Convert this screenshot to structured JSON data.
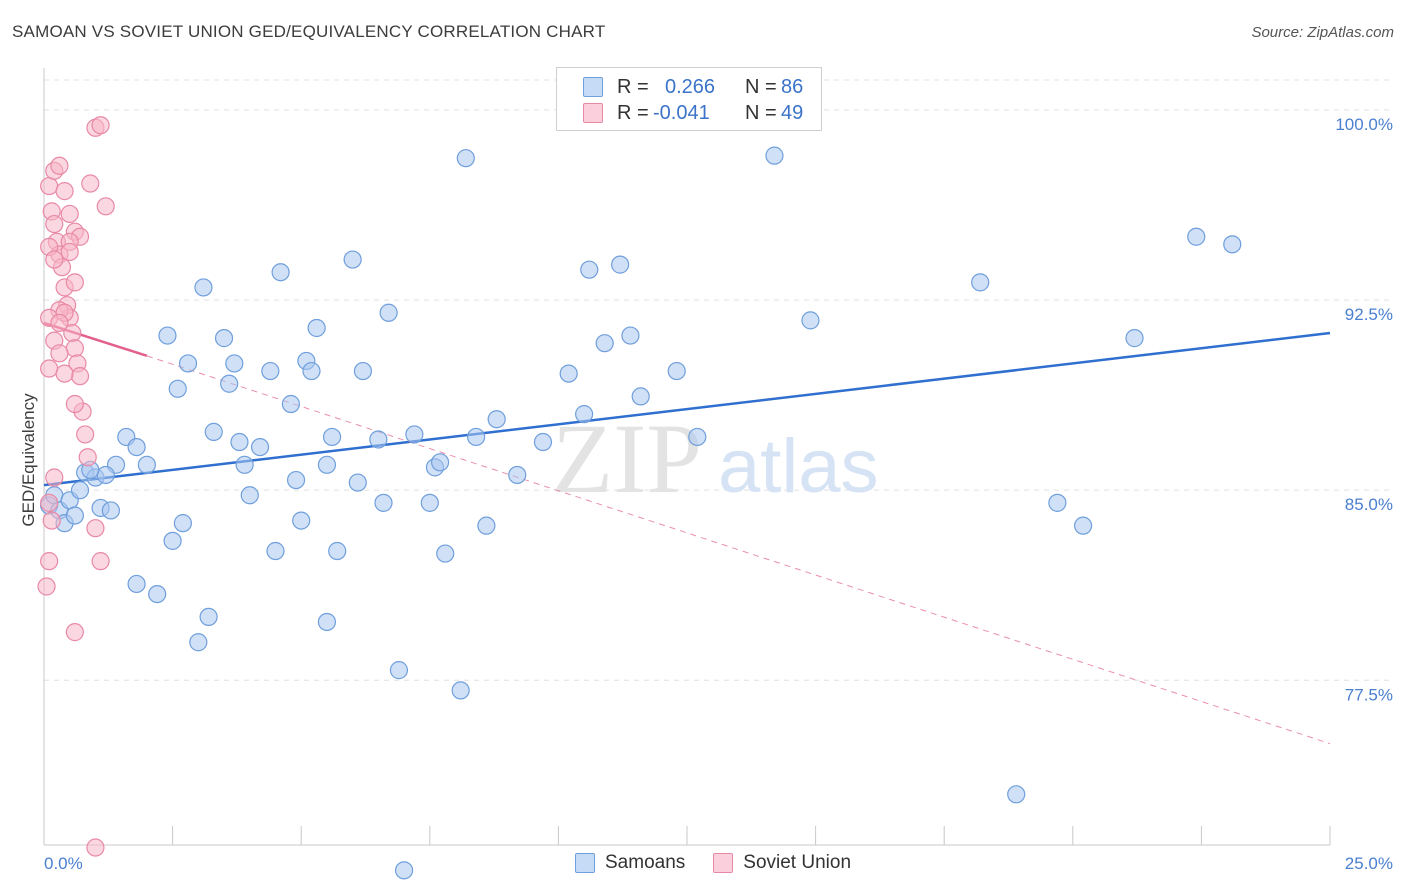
{
  "header": {
    "title": "SAMOAN VS SOVIET UNION GED/EQUIVALENCY CORRELATION CHART",
    "source": "Source: ZipAtlas.com"
  },
  "watermark": {
    "zip": "ZIP",
    "atlas": "atlas"
  },
  "legend": {
    "rows": [
      {
        "r_label": "R =",
        "r_value": "0.266",
        "n_label": "N =",
        "n_value": "86",
        "color": "#a9c7f0"
      },
      {
        "r_label": "R =",
        "r_value": "-0.041",
        "n_label": "N =",
        "n_value": "49",
        "color": "#f7b6c8"
      }
    ],
    "bottom": [
      {
        "label": "Samoans",
        "color": "#a9c7f0"
      },
      {
        "label": "Soviet Union",
        "color": "#f7b6c8"
      }
    ]
  },
  "colors": {
    "samoans_fill": "#a9c7f0",
    "samoans_stroke": "#6f9fdc",
    "samoans_line": "#2f6fcf",
    "soviet_fill": "#f7b6c8",
    "soviet_stroke": "#e889a6",
    "soviet_line": "#e2608a",
    "tick_text": "#4a7fd0",
    "grid": "#e0e0e0"
  },
  "chart_data": {
    "type": "scatter",
    "title": "SAMOAN VS SOVIET UNION GED/EQUIVALENCY CORRELATION CHART",
    "xlabel": "",
    "ylabel": "GED/Equivalency",
    "xlim": [
      0,
      25
    ],
    "ylim": [
      71.0,
      101.5
    ],
    "x_tick_labels": [
      "0.0%",
      "25.0%"
    ],
    "y_ticks": [
      77.5,
      85.0,
      92.5,
      100.0
    ],
    "y_tick_labels": [
      "77.5%",
      "85.0%",
      "92.5%",
      "100.0%"
    ],
    "grid": true,
    "legend_position": "top-center",
    "series": [
      {
        "name": "Samoans",
        "trend": {
          "x": [
            0,
            25
          ],
          "y": [
            85.2,
            91.2
          ],
          "style": "solid"
        },
        "points": [
          [
            0.1,
            84.4
          ],
          [
            0.2,
            84.8
          ],
          [
            0.3,
            84.2
          ],
          [
            0.4,
            83.7
          ],
          [
            0.5,
            84.6
          ],
          [
            0.6,
            84.0
          ],
          [
            0.7,
            85.0
          ],
          [
            0.8,
            85.7
          ],
          [
            1.0,
            85.5
          ],
          [
            1.1,
            84.3
          ],
          [
            1.4,
            86.0
          ],
          [
            1.6,
            87.1
          ],
          [
            1.8,
            86.7
          ],
          [
            2.0,
            86.0
          ],
          [
            2.4,
            91.1
          ],
          [
            2.6,
            89.0
          ],
          [
            2.8,
            90.0
          ],
          [
            3.1,
            93.0
          ],
          [
            3.3,
            87.3
          ],
          [
            3.5,
            91.0
          ],
          [
            3.6,
            89.2
          ],
          [
            3.7,
            90.0
          ],
          [
            3.8,
            86.9
          ],
          [
            3.9,
            86.0
          ],
          [
            4.0,
            84.8
          ],
          [
            4.2,
            86.7
          ],
          [
            4.4,
            89.7
          ],
          [
            4.5,
            82.6
          ],
          [
            4.6,
            93.6
          ],
          [
            4.8,
            88.4
          ],
          [
            4.9,
            85.4
          ],
          [
            5.0,
            83.8
          ],
          [
            5.1,
            90.1
          ],
          [
            5.2,
            89.7
          ],
          [
            5.3,
            91.4
          ],
          [
            5.5,
            79.8
          ],
          [
            5.6,
            87.1
          ],
          [
            5.7,
            82.6
          ],
          [
            6.0,
            94.1
          ],
          [
            6.1,
            85.3
          ],
          [
            6.2,
            89.7
          ],
          [
            6.6,
            84.5
          ],
          [
            6.7,
            92.0
          ],
          [
            6.9,
            77.9
          ],
          [
            7.2,
            87.2
          ],
          [
            7.5,
            84.5
          ],
          [
            7.6,
            85.9
          ],
          [
            7.7,
            86.1
          ],
          [
            7.8,
            82.5
          ],
          [
            8.1,
            77.1
          ],
          [
            8.2,
            98.1
          ],
          [
            8.4,
            87.1
          ],
          [
            8.6,
            83.6
          ],
          [
            8.8,
            87.8
          ],
          [
            9.2,
            85.6
          ],
          [
            9.7,
            86.9
          ],
          [
            10.2,
            89.6
          ],
          [
            10.5,
            88.0
          ],
          [
            10.6,
            93.7
          ],
          [
            10.9,
            90.8
          ],
          [
            11.2,
            93.9
          ],
          [
            11.4,
            91.1
          ],
          [
            11.6,
            88.7
          ],
          [
            12.3,
            89.7
          ],
          [
            12.7,
            87.1
          ],
          [
            14.2,
            98.2
          ],
          [
            14.9,
            91.7
          ],
          [
            18.2,
            93.2
          ],
          [
            18.9,
            73.0
          ],
          [
            19.7,
            84.5
          ],
          [
            20.2,
            83.6
          ],
          [
            21.2,
            91.0
          ],
          [
            22.4,
            95.0
          ],
          [
            23.1,
            94.7
          ],
          [
            1.3,
            84.2
          ],
          [
            1.8,
            81.3
          ],
          [
            2.2,
            80.9
          ],
          [
            2.7,
            83.7
          ],
          [
            3.2,
            80.0
          ],
          [
            7.0,
            70.0
          ],
          [
            1.2,
            85.6
          ],
          [
            0.9,
            85.8
          ],
          [
            2.5,
            83.0
          ],
          [
            5.5,
            86.0
          ],
          [
            3.0,
            79.0
          ],
          [
            6.5,
            87.0
          ]
        ]
      },
      {
        "name": "Soviet Union",
        "trend": {
          "x": [
            0,
            2.0
          ],
          "y": [
            91.6,
            90.3
          ],
          "style": "solid",
          "extension": {
            "x": [
              2.0,
              25
            ],
            "y": [
              90.3,
              75.0
            ],
            "style": "dashed"
          }
        },
        "points": [
          [
            0.1,
            97.0
          ],
          [
            0.15,
            96.0
          ],
          [
            0.2,
            95.5
          ],
          [
            0.25,
            94.8
          ],
          [
            0.3,
            94.3
          ],
          [
            0.35,
            93.8
          ],
          [
            0.4,
            93.0
          ],
          [
            0.45,
            92.3
          ],
          [
            0.5,
            91.8
          ],
          [
            0.55,
            91.2
          ],
          [
            0.6,
            90.6
          ],
          [
            0.65,
            90.0
          ],
          [
            0.7,
            89.5
          ],
          [
            0.75,
            88.1
          ],
          [
            0.8,
            87.2
          ],
          [
            0.85,
            86.3
          ],
          [
            0.2,
            97.6
          ],
          [
            0.3,
            97.8
          ],
          [
            0.4,
            96.8
          ],
          [
            0.5,
            95.9
          ],
          [
            0.6,
            95.2
          ],
          [
            0.1,
            94.6
          ],
          [
            0.2,
            94.1
          ],
          [
            0.3,
            92.1
          ],
          [
            0.1,
            91.8
          ],
          [
            0.2,
            90.9
          ],
          [
            0.3,
            90.4
          ],
          [
            0.1,
            89.8
          ],
          [
            0.2,
            85.5
          ],
          [
            0.1,
            84.5
          ],
          [
            0.15,
            83.8
          ],
          [
            0.1,
            82.2
          ],
          [
            0.05,
            81.2
          ],
          [
            1.0,
            99.3
          ],
          [
            1.1,
            99.4
          ],
          [
            1.2,
            96.2
          ],
          [
            0.9,
            97.1
          ],
          [
            0.7,
            95.0
          ],
          [
            0.4,
            92.0
          ],
          [
            0.5,
            94.8
          ],
          [
            0.6,
            93.2
          ],
          [
            0.3,
            91.6
          ],
          [
            0.4,
            89.6
          ],
          [
            0.6,
            88.4
          ],
          [
            1.0,
            83.5
          ],
          [
            1.1,
            82.2
          ],
          [
            0.6,
            79.4
          ],
          [
            1.0,
            70.9
          ],
          [
            0.5,
            94.4
          ]
        ]
      }
    ]
  }
}
